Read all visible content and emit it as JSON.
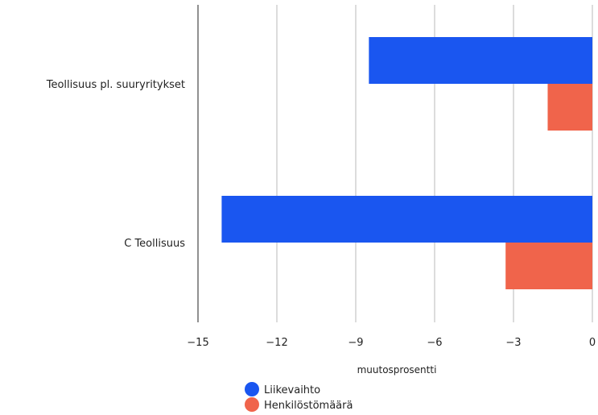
{
  "chart_data": {
    "type": "bar",
    "orientation": "horizontal",
    "title": "",
    "xlabel": "muutosprosentti",
    "ylabel": "",
    "categories": [
      "Teollisuus pl. suuryritykset",
      "C Teollisuus"
    ],
    "series": [
      {
        "name": "Liikevaihto",
        "color": "#1a56f0",
        "values": [
          -8.5,
          -14.1
        ]
      },
      {
        "name": "Henkilöstömäärä",
        "color": "#f0644b",
        "values": [
          -1.7,
          -3.3
        ]
      }
    ],
    "xlim": [
      -15,
      0
    ],
    "xticks": [
      -15,
      -12,
      -9,
      -6,
      -3,
      0
    ],
    "xtick_labels": [
      "−15",
      "−12",
      "−9",
      "−6",
      "−3",
      "0"
    ],
    "grid": "vertical",
    "legend_position": "bottom-center"
  }
}
